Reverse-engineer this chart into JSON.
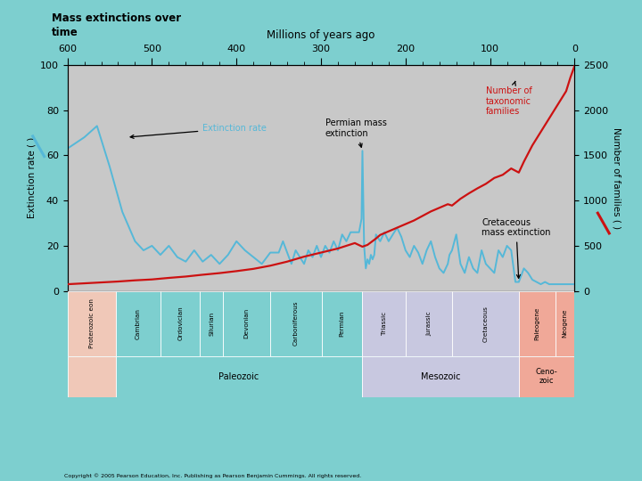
{
  "title": "Mass extinctions over\ntime",
  "xlabel": "Millions of years ago",
  "ylabel_left": "Extinction rate ( )",
  "ylabel_right": "Number of families ( )",
  "xlim": [
    600,
    0
  ],
  "ylim_left": [
    0,
    100
  ],
  "ylim_right": [
    0,
    2500
  ],
  "yticks_left": [
    0,
    20,
    40,
    60,
    80,
    100
  ],
  "yticks_right": [
    0,
    500,
    1000,
    1500,
    2000,
    2500
  ],
  "xticks": [
    600,
    500,
    400,
    300,
    200,
    100,
    0
  ],
  "bg_color": "#7dcfcf",
  "plot_bg_color": "#c8c8c8",
  "blue_color": "#55b8d8",
  "red_color": "#cc1111",
  "periods": [
    {
      "name": "Proterozoic eon",
      "start": 600,
      "end": 543,
      "color": "#f0c8b8"
    },
    {
      "name": "Cambrian",
      "start": 543,
      "end": 490,
      "color": "#7dcfcf"
    },
    {
      "name": "Ordovician",
      "start": 490,
      "end": 443,
      "color": "#7dcfcf"
    },
    {
      "name": "Silurian",
      "start": 443,
      "end": 416,
      "color": "#7dcfcf"
    },
    {
      "name": "Devonian",
      "start": 416,
      "end": 360,
      "color": "#7dcfcf"
    },
    {
      "name": "Carboniferous",
      "start": 360,
      "end": 299,
      "color": "#7dcfcf"
    },
    {
      "name": "Permian",
      "start": 299,
      "end": 251,
      "color": "#7dcfcf"
    },
    {
      "name": "Triassic",
      "start": 251,
      "end": 200,
      "color": "#c8c8e0"
    },
    {
      "name": "Jurassic",
      "start": 200,
      "end": 145,
      "color": "#c8c8e0"
    },
    {
      "name": "Cretaceous",
      "start": 145,
      "end": 66,
      "color": "#c8c8e0"
    },
    {
      "name": "Paleogene",
      "start": 66,
      "end": 23,
      "color": "#f0a898"
    },
    {
      "name": "Neogene",
      "start": 23,
      "end": 0,
      "color": "#f0a898"
    }
  ],
  "blue_x": [
    600,
    580,
    565,
    550,
    535,
    520,
    510,
    500,
    490,
    480,
    470,
    460,
    450,
    440,
    430,
    420,
    410,
    400,
    390,
    380,
    370,
    360,
    350,
    345,
    340,
    335,
    330,
    325,
    320,
    315,
    310,
    305,
    300,
    295,
    290,
    285,
    280,
    275,
    270,
    265,
    260,
    255,
    252,
    251,
    249,
    247,
    245,
    243,
    241,
    239,
    237,
    235,
    230,
    225,
    220,
    215,
    210,
    205,
    200,
    195,
    190,
    185,
    180,
    175,
    170,
    165,
    160,
    155,
    150,
    148,
    145,
    140,
    135,
    130,
    125,
    120,
    115,
    110,
    105,
    100,
    95,
    90,
    85,
    80,
    75,
    70,
    66,
    60,
    55,
    50,
    45,
    40,
    35,
    30,
    25,
    20,
    15,
    10,
    5,
    0
  ],
  "blue_y": [
    63,
    68,
    73,
    55,
    35,
    22,
    18,
    20,
    16,
    20,
    15,
    13,
    18,
    13,
    16,
    12,
    16,
    22,
    18,
    15,
    12,
    17,
    17,
    22,
    17,
    12,
    18,
    15,
    12,
    18,
    15,
    20,
    15,
    20,
    17,
    22,
    18,
    25,
    22,
    26,
    26,
    26,
    32,
    62,
    20,
    10,
    14,
    12,
    16,
    14,
    16,
    25,
    22,
    26,
    22,
    25,
    28,
    24,
    18,
    15,
    20,
    17,
    12,
    18,
    22,
    15,
    10,
    8,
    12,
    16,
    18,
    25,
    12,
    8,
    15,
    10,
    8,
    18,
    12,
    10,
    8,
    18,
    15,
    20,
    18,
    4,
    4,
    10,
    8,
    5,
    4,
    3,
    4,
    3,
    3,
    3,
    3,
    3,
    3,
    3
  ],
  "red_x": [
    600,
    580,
    560,
    540,
    520,
    500,
    480,
    460,
    440,
    420,
    400,
    380,
    360,
    340,
    320,
    300,
    280,
    270,
    260,
    251,
    245,
    240,
    235,
    230,
    220,
    210,
    200,
    190,
    180,
    170,
    160,
    150,
    145,
    135,
    125,
    115,
    105,
    95,
    85,
    75,
    66,
    60,
    50,
    40,
    30,
    20,
    10,
    5,
    0
  ],
  "red_y": [
    75,
    85,
    95,
    105,
    118,
    128,
    145,
    160,
    180,
    198,
    220,
    245,
    280,
    325,
    380,
    425,
    470,
    500,
    530,
    490,
    510,
    545,
    580,
    620,
    660,
    700,
    740,
    780,
    830,
    880,
    920,
    960,
    945,
    1020,
    1080,
    1135,
    1185,
    1250,
    1285,
    1355,
    1310,
    1430,
    1610,
    1760,
    1910,
    2060,
    2210,
    2360,
    2490
  ]
}
